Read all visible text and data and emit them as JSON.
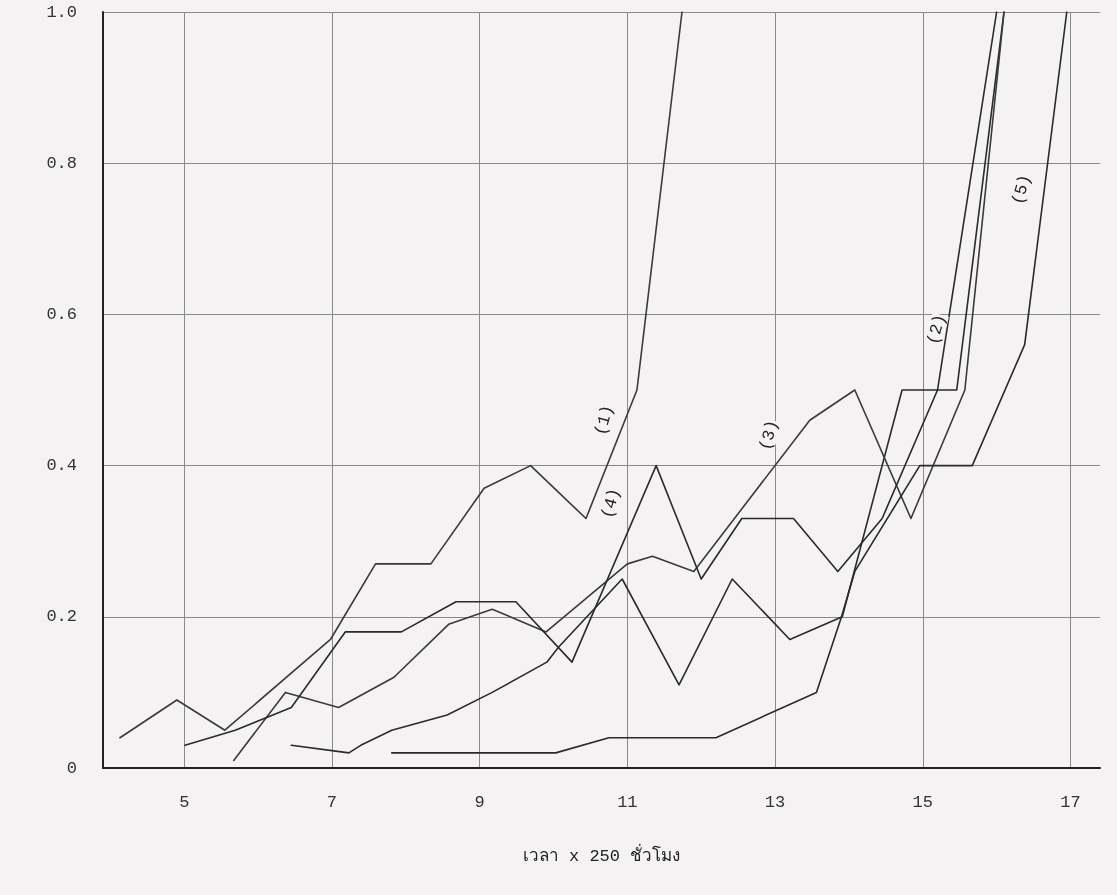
{
  "chart_data": {
    "type": "line",
    "xlabel": "เวลา x 250 ชั่วโมง",
    "xlim": [
      3.9,
      17.4
    ],
    "xticks": [
      5,
      7,
      9,
      11,
      13,
      15,
      17
    ],
    "ylim": [
      0,
      1.0
    ],
    "yticks": [
      0,
      0.2,
      0.4,
      0.6,
      0.8,
      {
        "value": 1.0,
        "label": "1.0"
      }
    ],
    "grid": true,
    "marker": "none",
    "line_style": "solid",
    "series": [
      {
        "color": "#3a3a3a",
        "x": [
          4.13,
          4.9,
          5.55,
          6.98,
          7.59,
          8.34,
          9.06,
          9.69,
          10.44,
          11.13,
          11.74
        ],
        "values": [
          0.04,
          0.09,
          0.05,
          0.17,
          0.27,
          0.27,
          0.37,
          0.4,
          0.33,
          0.5,
          1.0
        ]
      },
      {
        "color": "#2a2a2a",
        "x": [
          6.45,
          7.23,
          7.39,
          7.81,
          8.56,
          9.17,
          9.91,
          10.07,
          10.93,
          11.7,
          12.42,
          13.2,
          13.91,
          14.72,
          15.46,
          16.1
        ],
        "values": [
          0.03,
          0.02,
          0.03,
          0.05,
          0.07,
          0.1,
          0.14,
          0.16,
          0.25,
          0.11,
          0.25,
          0.17,
          0.2,
          0.5,
          0.5,
          1.0
        ]
      },
      {
        "color": "#3a3a3a",
        "x": [
          5.67,
          6.37,
          7.09,
          7.84,
          8.58,
          9.17,
          9.9,
          11.0,
          11.34,
          11.9,
          13.47,
          14.08,
          14.84,
          15.57,
          16.1
        ],
        "values": [
          0.01,
          0.1,
          0.08,
          0.12,
          0.19,
          0.21,
          0.18,
          0.27,
          0.28,
          0.26,
          0.46,
          0.5,
          0.33,
          0.5,
          1.0
        ]
      },
      {
        "color": "#2a2a2a",
        "x": [
          5.01,
          5.69,
          6.45,
          7.18,
          7.94,
          8.68,
          9.49,
          10.25,
          11.39,
          12.0,
          12.55,
          13.25,
          13.85,
          14.45,
          15.2,
          16.0
        ],
        "values": [
          0.03,
          0.05,
          0.08,
          0.18,
          0.18,
          0.22,
          0.22,
          0.14,
          0.4,
          0.25,
          0.33,
          0.33,
          0.26,
          0.33,
          0.5,
          1.0
        ]
      },
      {
        "color": "#2a2a2a",
        "x": [
          7.81,
          8.99,
          10.03,
          10.75,
          12.2,
          13.56,
          13.9,
          14.08,
          14.96,
          15.67,
          16.38,
          16.95
        ],
        "values": [
          0.02,
          0.02,
          0.02,
          0.04,
          0.04,
          0.1,
          0.2,
          0.26,
          0.4,
          0.4,
          0.56,
          1.0
        ]
      }
    ],
    "annotations": [
      {
        "text": "(1)",
        "x": 10.69,
        "y": 0.46
      },
      {
        "text": "(2)",
        "x": 15.19,
        "y": 0.58
      },
      {
        "text": "(3)",
        "x": 12.92,
        "y": 0.44
      },
      {
        "text": "(4)",
        "x": 10.78,
        "y": 0.35
      },
      {
        "text": "(5)",
        "x": 16.34,
        "y": 0.765
      }
    ]
  }
}
